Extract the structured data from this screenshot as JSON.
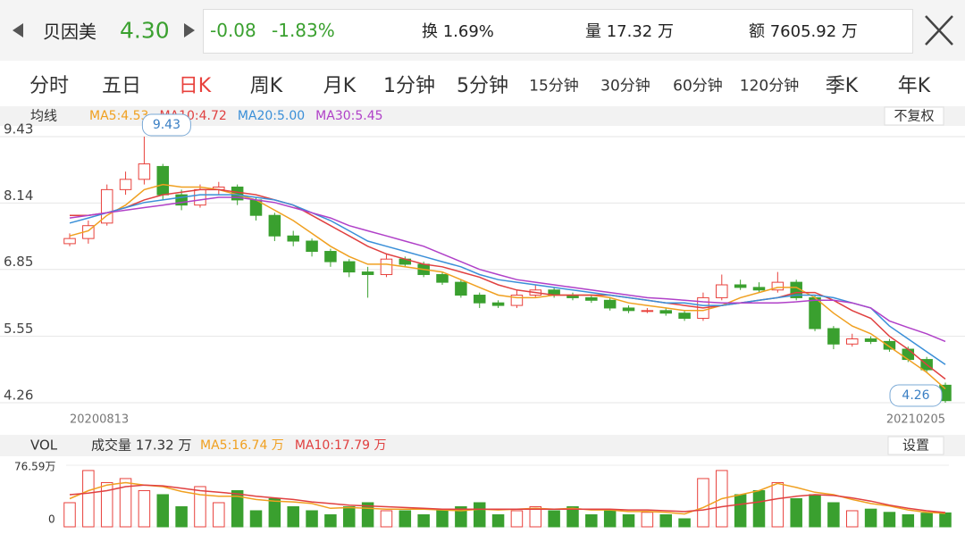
{
  "header": {
    "name": "贝因美",
    "price": "4.30",
    "change": "-0.08",
    "change_pct": "-1.83%",
    "turnover": "换 1.69%",
    "volume": "量 17.32 万",
    "amount": "额 7605.92 万"
  },
  "tabs": [
    "分时",
    "五日",
    "日K",
    "周K",
    "月K",
    "1分钟",
    "5分钟",
    "15分钟",
    "30分钟",
    "60分钟",
    "120分钟",
    "季K",
    "年K"
  ],
  "chart_data": [
    {
      "type": "candlestick",
      "title": "均线",
      "adjust": "不复权",
      "ylim": [
        4.26,
        9.43
      ],
      "yticks": [
        9.43,
        8.14,
        6.85,
        5.55,
        4.26
      ],
      "x_start": "20200813",
      "x_end": "20210205",
      "up_color": "#e8413c",
      "down_color": "#3aa02f",
      "candles": [
        {
          "o": 7.35,
          "c": 7.45,
          "h": 7.55,
          "l": 7.3
        },
        {
          "o": 7.45,
          "c": 7.7,
          "h": 7.8,
          "l": 7.35
        },
        {
          "o": 7.75,
          "c": 8.4,
          "h": 8.5,
          "l": 7.7
        },
        {
          "o": 8.4,
          "c": 8.6,
          "h": 8.75,
          "l": 8.3
        },
        {
          "o": 8.6,
          "c": 8.9,
          "h": 9.43,
          "l": 8.5
        },
        {
          "o": 8.85,
          "c": 8.3,
          "h": 8.9,
          "l": 8.2
        },
        {
          "o": 8.3,
          "c": 8.1,
          "h": 8.4,
          "l": 8.0
        },
        {
          "o": 8.1,
          "c": 8.4,
          "h": 8.5,
          "l": 8.05
        },
        {
          "o": 8.4,
          "c": 8.45,
          "h": 8.55,
          "l": 8.3
        },
        {
          "o": 8.45,
          "c": 8.2,
          "h": 8.5,
          "l": 8.1
        },
        {
          "o": 8.2,
          "c": 7.9,
          "h": 8.25,
          "l": 7.8
        },
        {
          "o": 7.9,
          "c": 7.5,
          "h": 7.95,
          "l": 7.4
        },
        {
          "o": 7.5,
          "c": 7.4,
          "h": 7.6,
          "l": 7.3
        },
        {
          "o": 7.4,
          "c": 7.2,
          "h": 7.45,
          "l": 7.1
        },
        {
          "o": 7.2,
          "c": 7.0,
          "h": 7.25,
          "l": 6.9
        },
        {
          "o": 7.0,
          "c": 6.8,
          "h": 7.05,
          "l": 6.7
        },
        {
          "o": 6.8,
          "c": 6.75,
          "h": 6.9,
          "l": 6.3
        },
        {
          "o": 6.75,
          "c": 7.05,
          "h": 7.15,
          "l": 6.7
        },
        {
          "o": 7.05,
          "c": 6.95,
          "h": 7.1,
          "l": 6.9
        },
        {
          "o": 6.95,
          "c": 6.75,
          "h": 7.0,
          "l": 6.7
        },
        {
          "o": 6.75,
          "c": 6.6,
          "h": 6.8,
          "l": 6.55
        },
        {
          "o": 6.6,
          "c": 6.35,
          "h": 6.65,
          "l": 6.3
        },
        {
          "o": 6.35,
          "c": 6.2,
          "h": 6.4,
          "l": 6.1
        },
        {
          "o": 6.2,
          "c": 6.15,
          "h": 6.25,
          "l": 6.1
        },
        {
          "o": 6.15,
          "c": 6.35,
          "h": 6.45,
          "l": 6.1
        },
        {
          "o": 6.35,
          "c": 6.45,
          "h": 6.55,
          "l": 6.3
        },
        {
          "o": 6.45,
          "c": 6.35,
          "h": 6.5,
          "l": 6.3
        },
        {
          "o": 6.35,
          "c": 6.3,
          "h": 6.4,
          "l": 6.25
        },
        {
          "o": 6.3,
          "c": 6.25,
          "h": 6.35,
          "l": 6.2
        },
        {
          "o": 6.25,
          "c": 6.1,
          "h": 6.3,
          "l": 6.05
        },
        {
          "o": 6.1,
          "c": 6.05,
          "h": 6.15,
          "l": 6.0
        },
        {
          "o": 6.05,
          "c": 6.05,
          "h": 6.1,
          "l": 6.0
        },
        {
          "o": 6.05,
          "c": 6.0,
          "h": 6.1,
          "l": 5.95
        },
        {
          "o": 6.0,
          "c": 5.9,
          "h": 6.05,
          "l": 5.85
        },
        {
          "o": 5.9,
          "c": 6.3,
          "h": 6.4,
          "l": 5.85
        },
        {
          "o": 6.3,
          "c": 6.55,
          "h": 6.75,
          "l": 6.25
        },
        {
          "o": 6.55,
          "c": 6.5,
          "h": 6.65,
          "l": 6.45
        },
        {
          "o": 6.5,
          "c": 6.45,
          "h": 6.6,
          "l": 6.4
        },
        {
          "o": 6.45,
          "c": 6.6,
          "h": 6.8,
          "l": 6.4
        },
        {
          "o": 6.6,
          "c": 6.3,
          "h": 6.65,
          "l": 6.25
        },
        {
          "o": 6.3,
          "c": 5.7,
          "h": 6.35,
          "l": 5.65
        },
        {
          "o": 5.7,
          "c": 5.4,
          "h": 5.75,
          "l": 5.3
        },
        {
          "o": 5.4,
          "c": 5.5,
          "h": 5.6,
          "l": 5.35
        },
        {
          "o": 5.5,
          "c": 5.45,
          "h": 5.55,
          "l": 5.4
        },
        {
          "o": 5.45,
          "c": 5.3,
          "h": 5.5,
          "l": 5.25
        },
        {
          "o": 5.3,
          "c": 5.1,
          "h": 5.35,
          "l": 5.05
        },
        {
          "o": 5.1,
          "c": 4.9,
          "h": 5.15,
          "l": 4.85
        },
        {
          "o": 4.6,
          "c": 4.3,
          "h": 4.65,
          "l": 4.26
        }
      ],
      "series": [
        {
          "name": "MA5:4.53",
          "color": "#f0a020",
          "values": [
            7.5,
            7.6,
            7.9,
            8.1,
            8.4,
            8.5,
            8.45,
            8.45,
            8.4,
            8.3,
            8.2,
            8.0,
            7.8,
            7.55,
            7.3,
            7.1,
            6.95,
            6.95,
            6.9,
            6.85,
            6.8,
            6.65,
            6.5,
            6.35,
            6.3,
            6.3,
            6.35,
            6.35,
            6.35,
            6.3,
            6.2,
            6.15,
            6.1,
            6.05,
            6.05,
            6.15,
            6.3,
            6.4,
            6.5,
            6.5,
            6.3,
            6.0,
            5.75,
            5.6,
            5.35,
            5.1,
            4.85,
            4.53
          ]
        },
        {
          "name": "MA10:4.72",
          "color": "#e04040",
          "values": [
            7.9,
            7.9,
            7.95,
            8.05,
            8.2,
            8.3,
            8.35,
            8.4,
            8.4,
            8.35,
            8.3,
            8.2,
            8.1,
            7.9,
            7.7,
            7.5,
            7.3,
            7.15,
            7.05,
            6.95,
            6.9,
            6.8,
            6.7,
            6.55,
            6.45,
            6.4,
            6.35,
            6.35,
            6.35,
            6.35,
            6.3,
            6.25,
            6.2,
            6.15,
            6.1,
            6.15,
            6.2,
            6.25,
            6.3,
            6.4,
            6.4,
            6.25,
            6.05,
            5.9,
            5.55,
            5.3,
            5.0,
            4.72
          ]
        },
        {
          "name": "MA20:5.00",
          "color": "#3a8fd8",
          "values": [
            7.75,
            7.85,
            7.95,
            8.05,
            8.15,
            8.2,
            8.25,
            8.3,
            8.3,
            8.3,
            8.25,
            8.2,
            8.1,
            7.95,
            7.8,
            7.6,
            7.4,
            7.3,
            7.2,
            7.1,
            7.0,
            6.9,
            6.75,
            6.65,
            6.6,
            6.55,
            6.5,
            6.45,
            6.4,
            6.35,
            6.3,
            6.25,
            6.2,
            6.2,
            6.15,
            6.15,
            6.2,
            6.25,
            6.3,
            6.35,
            6.35,
            6.3,
            6.2,
            6.1,
            5.75,
            5.5,
            5.25,
            5.0
          ]
        },
        {
          "name": "MA30:5.45",
          "color": "#b040c8",
          "values": [
            7.85,
            7.9,
            7.95,
            8.0,
            8.05,
            8.1,
            8.15,
            8.2,
            8.25,
            8.25,
            8.2,
            8.15,
            8.05,
            7.95,
            7.85,
            7.7,
            7.6,
            7.5,
            7.4,
            7.3,
            7.15,
            7.0,
            6.85,
            6.75,
            6.65,
            6.6,
            6.55,
            6.5,
            6.45,
            6.4,
            6.35,
            6.3,
            6.28,
            6.25,
            6.22,
            6.2,
            6.2,
            6.2,
            6.2,
            6.22,
            6.25,
            6.25,
            6.2,
            6.1,
            5.85,
            5.72,
            5.6,
            5.45
          ]
        }
      ]
    },
    {
      "type": "volume",
      "title": "VOL",
      "caption": "成交量 17.32 万",
      "button": "设置",
      "ylim": [
        0,
        76.59
      ],
      "yticks": [
        0,
        {
          "value": 76.59,
          "label": "76.59万"
        }
      ],
      "values": [
        30,
        70,
        55,
        60,
        45,
        40,
        25,
        50,
        30,
        45,
        20,
        35,
        25,
        20,
        15,
        25,
        30,
        20,
        20,
        15,
        20,
        25,
        30,
        15,
        20,
        25,
        20,
        25,
        15,
        20,
        15,
        18,
        15,
        10,
        60,
        70,
        40,
        45,
        55,
        35,
        40,
        30,
        20,
        22,
        18,
        15,
        17,
        17.32
      ],
      "series": [
        {
          "name": "MA5:16.74 万",
          "color": "#f0a020",
          "values": [
            35,
            45,
            52,
            55,
            52,
            50,
            44,
            40,
            38,
            38,
            34,
            32,
            31,
            29,
            23,
            24,
            23,
            22,
            22,
            22,
            21,
            20,
            22,
            21,
            22,
            23,
            22,
            23,
            21,
            21,
            19,
            19,
            18,
            16,
            24,
            35,
            40,
            45,
            54,
            49,
            43,
            40,
            34,
            29,
            26,
            21,
            18,
            16.74
          ]
        },
        {
          "name": "MA10:17.79 万",
          "color": "#e04040",
          "values": [
            40,
            42,
            45,
            50,
            52,
            51,
            48,
            45,
            43,
            41,
            38,
            36,
            34,
            31,
            29,
            27,
            26,
            25,
            24,
            23,
            22,
            22,
            22,
            22,
            22,
            22,
            22,
            22,
            22,
            22,
            21,
            21,
            20,
            19,
            21,
            25,
            28,
            31,
            35,
            38,
            40,
            39,
            36,
            32,
            27,
            23,
            20,
            17.79
          ]
        }
      ]
    }
  ]
}
